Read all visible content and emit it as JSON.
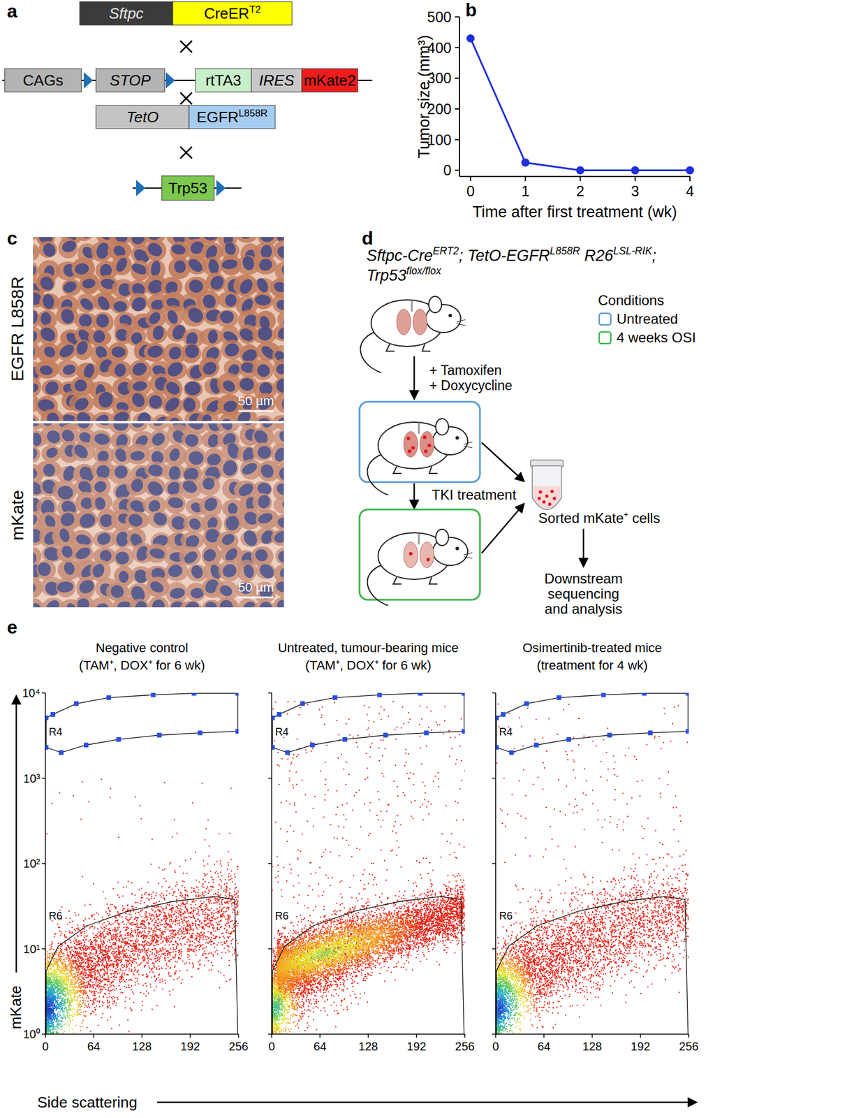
{
  "panel_labels": [
    "a",
    "b",
    "c",
    "d",
    "e"
  ],
  "construct": {
    "driver": [
      [
        {
          "text": "Sftpc"
        }
      ],
      [
        {
          "text": "CreER"
        },
        {
          "text": "T2",
          "sup": true
        }
      ]
    ],
    "reporter": [
      [
        {
          "text": "CAGs"
        }
      ],
      [
        {
          "text": "STOP"
        }
      ],
      [
        {
          "text": "rtTA3"
        }
      ],
      [
        {
          "text": "IRES"
        }
      ],
      [
        {
          "text": "mKate2"
        }
      ]
    ],
    "oncogene": [
      [
        {
          "text": "TetO"
        }
      ],
      [
        {
          "text": "EGFR"
        },
        {
          "text": "L858R",
          "sup": true
        }
      ]
    ],
    "tumor_suppressor": [
      [
        {
          "text": "Trp53"
        }
      ]
    ]
  },
  "chart_data": [
    {
      "type": "line",
      "x": [
        0,
        1,
        2,
        3,
        4
      ],
      "values": [
        430,
        25,
        0,
        0,
        0
      ],
      "x_label": "Time after first treatment (wk)",
      "y_label": "Tumor size (mm³)",
      "xlim": [
        -0.2,
        4
      ],
      "ylim": [
        -20,
        500
      ],
      "xticks": [
        0,
        1,
        2,
        3,
        4
      ],
      "yticks": [
        0,
        100,
        200,
        300,
        400,
        500
      ],
      "color": "#1f2fd8",
      "marker": "circle"
    },
    {
      "type": "density",
      "title": "Negative control",
      "subtitle": "(TAM⁺, DOX⁺ for 6 wk)",
      "xlim": [
        0,
        256
      ],
      "ylim": [
        1,
        10000
      ],
      "log": "y",
      "xticks": [
        0,
        64,
        128,
        192,
        256
      ],
      "yticks": [
        {
          "value": 1,
          "label": "10⁰"
        },
        {
          "value": 10,
          "label": "10¹"
        },
        {
          "value": 100,
          "label": "10²"
        },
        {
          "value": 1000,
          "label": "10³"
        },
        {
          "value": 10000,
          "label": "10⁴"
        }
      ],
      "tick_labels": true,
      "gates": [
        {
          "name": "R4",
          "points": [
            [
              1,
              2300
            ],
            [
              21,
              2000
            ],
            [
              54,
              2450
            ],
            [
              97,
              2850
            ],
            [
              151,
              3200
            ],
            [
              205,
              3400
            ],
            [
              255,
              3550
            ],
            [
              255,
              9900
            ],
            [
              197,
              9900
            ],
            [
              143,
              9500
            ],
            [
              84,
              8800
            ],
            [
              41,
              7500
            ],
            [
              10,
              5600
            ],
            [
              1,
              5100
            ]
          ]
        },
        {
          "name": "R6",
          "points": [
            [
              1,
              1
            ],
            [
              1,
              5.5
            ],
            [
              17,
              10.7
            ],
            [
              55,
              18.6
            ],
            [
              109,
              27.5
            ],
            [
              170,
              36
            ],
            [
              224,
              41
            ],
            [
              251,
              38
            ],
            [
              255,
              1
            ]
          ]
        }
      ]
    },
    {
      "type": "density",
      "title": "Untreated, tumour-bearing mice",
      "subtitle": "(TAM⁺, DOX⁺ for 6 wk)",
      "xlim": [
        0,
        256
      ],
      "ylim": [
        1,
        10000
      ],
      "log": "y",
      "xticks": [
        0,
        64,
        128,
        192,
        256
      ],
      "yticks": [
        {
          "value": 1,
          "label": "10⁰"
        },
        {
          "value": 10,
          "label": "10¹"
        },
        {
          "value": 100,
          "label": "10²"
        },
        {
          "value": 1000,
          "label": "10³"
        },
        {
          "value": 10000,
          "label": "10⁴"
        }
      ],
      "tick_labels": "x",
      "gates": [
        {
          "name": "R4",
          "points": [
            [
              1,
              2300
            ],
            [
              21,
              2000
            ],
            [
              54,
              2450
            ],
            [
              97,
              2850
            ],
            [
              151,
              3200
            ],
            [
              205,
              3400
            ],
            [
              255,
              3550
            ],
            [
              255,
              9900
            ],
            [
              197,
              9900
            ],
            [
              143,
              9500
            ],
            [
              84,
              8800
            ],
            [
              41,
              7500
            ],
            [
              10,
              5600
            ],
            [
              1,
              5100
            ]
          ]
        },
        {
          "name": "R6",
          "points": [
            [
              1,
              1
            ],
            [
              1,
              5.5
            ],
            [
              17,
              10.7
            ],
            [
              55,
              18.6
            ],
            [
              109,
              27.5
            ],
            [
              170,
              36
            ],
            [
              224,
              41
            ],
            [
              251,
              38
            ],
            [
              255,
              1
            ]
          ]
        }
      ]
    },
    {
      "type": "density",
      "title": "Osimertinib-treated mice",
      "subtitle": "(treatment for 4 wk)",
      "xlim": [
        0,
        256
      ],
      "ylim": [
        1,
        10000
      ],
      "log": "y",
      "xticks": [
        0,
        64,
        128,
        192,
        256
      ],
      "yticks": [
        {
          "value": 1,
          "label": "10⁰"
        },
        {
          "value": 10,
          "label": "10¹"
        },
        {
          "value": 100,
          "label": "10²"
        },
        {
          "value": 1000,
          "label": "10³"
        },
        {
          "value": 10000,
          "label": "10⁴"
        }
      ],
      "tick_labels": "x",
      "gates": [
        {
          "name": "R4",
          "points": [
            [
              1,
              2300
            ],
            [
              21,
              2000
            ],
            [
              54,
              2450
            ],
            [
              97,
              2850
            ],
            [
              151,
              3200
            ],
            [
              205,
              3400
            ],
            [
              255,
              3550
            ],
            [
              255,
              9900
            ],
            [
              197,
              9900
            ],
            [
              143,
              9500
            ],
            [
              84,
              8800
            ],
            [
              41,
              7500
            ],
            [
              10,
              5600
            ],
            [
              1,
              5100
            ]
          ]
        },
        {
          "name": "R6",
          "points": [
            [
              1,
              1
            ],
            [
              1,
              5.5
            ],
            [
              17,
              10.7
            ],
            [
              55,
              18.6
            ],
            [
              109,
              27.5
            ],
            [
              170,
              36
            ],
            [
              224,
              41
            ],
            [
              251,
              38
            ],
            [
              255,
              1
            ]
          ]
        }
      ]
    }
  ],
  "histology": {
    "stains": [
      "EGFR L858R",
      "mKate"
    ],
    "scale_bar": "50 µm"
  },
  "workflow": {
    "genotype": [
      [
        {
          "text": "Sftpc-Cre"
        },
        {
          "text": "ERT2",
          "sup": true
        },
        {
          "text": "; TetO-EGFR"
        },
        {
          "text": "L858R",
          "sup": true
        },
        {
          "text": " R26"
        },
        {
          "text": "LSL-RIK",
          "sup": true
        },
        {
          "text": ";"
        }
      ],
      [
        {
          "text": "Trp53"
        },
        {
          "text": "flox/flox",
          "sup": true
        }
      ]
    ],
    "treatment": [
      "+ Tamoxifen",
      "+ Doxycycline"
    ],
    "step": "TKI treatment",
    "sorted": "Sorted mKate⁺ cells",
    "downstream": [
      "Downstream",
      "sequencing",
      "and analysis"
    ],
    "legend": {
      "title": "Conditions",
      "items": [
        {
          "label": "Untreated",
          "color": "#5b9bd5"
        },
        {
          "label": "4 weeks OSI",
          "color": "#3cb44b"
        }
      ]
    }
  },
  "flow": {
    "y_label": "mKate",
    "x_label": "Side scattering"
  }
}
